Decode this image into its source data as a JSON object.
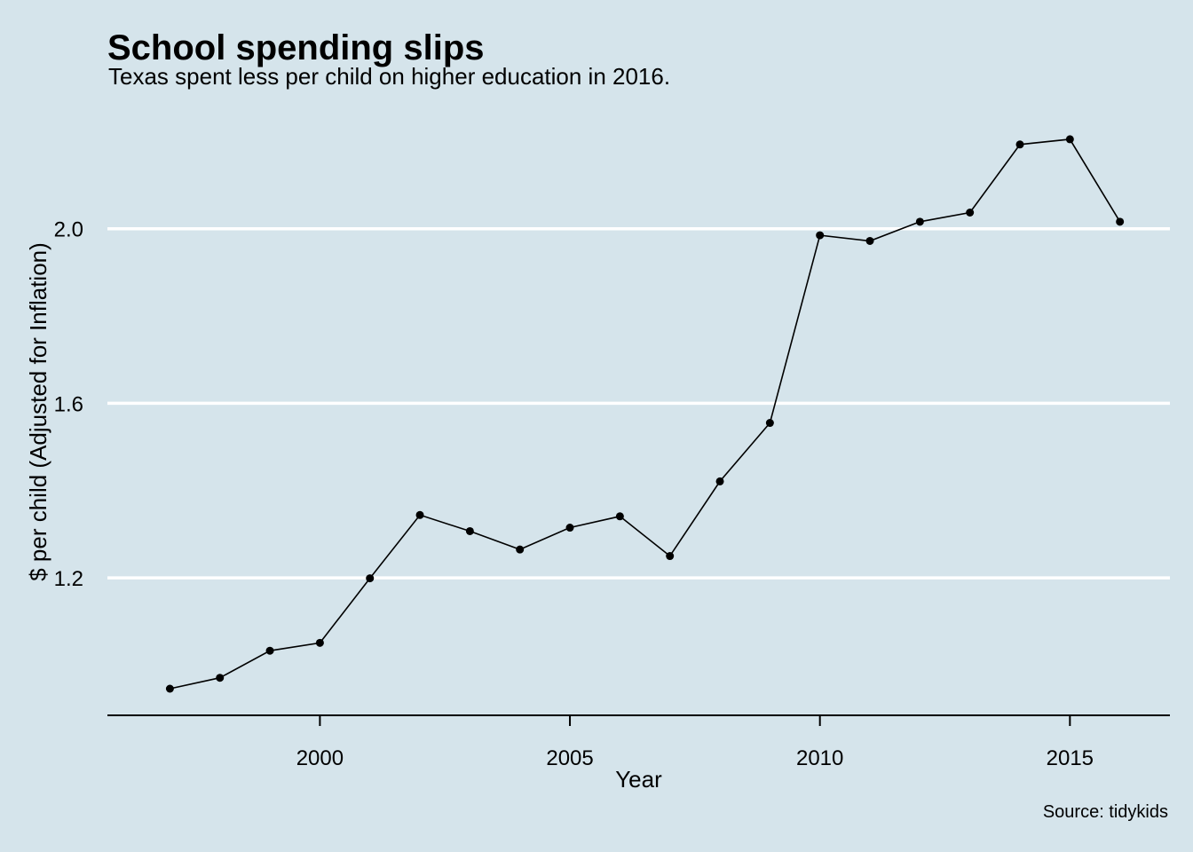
{
  "chart_data": {
    "type": "line",
    "title": "School spending slips",
    "subtitle": "Texas spent less per child on higher education in 2016.",
    "caption": "Source: tidykids",
    "xlabel": "Year",
    "ylabel": "$ per child (Adjusted for Inflation)",
    "x": [
      1997,
      1998,
      1999,
      2000,
      2001,
      2002,
      2003,
      2004,
      2005,
      2006,
      2007,
      2008,
      2009,
      2010,
      2011,
      2012,
      2013,
      2014,
      2015,
      2016
    ],
    "series": [
      {
        "values": [
          0.946,
          0.971,
          1.033,
          1.051,
          1.199,
          1.344,
          1.307,
          1.265,
          1.315,
          1.341,
          1.25,
          1.421,
          1.555,
          1.985,
          1.972,
          2.016,
          2.037,
          2.193,
          2.205,
          2.016
        ],
        "color": "#000000",
        "markers": true
      }
    ],
    "xlim": [
      1995.75,
      2017.0
    ],
    "ylim": [
      0.885,
      2.28
    ],
    "xticks": [
      2000,
      2005,
      2010,
      2015
    ],
    "xtick_labels": [
      "2000",
      "2005",
      "2010",
      "2015"
    ],
    "yticks": [
      1.2,
      1.6,
      2.0
    ],
    "ytick_labels": [
      "1.2",
      "1.6",
      "2.0"
    ],
    "grid": "horizontal-major",
    "legend": "none",
    "colors": {
      "background": "#d5e4eb",
      "grid": "#ffffff",
      "axis": "#000000"
    }
  }
}
